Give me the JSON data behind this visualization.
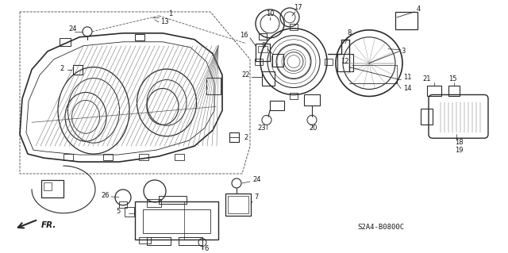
{
  "diagram_code": "S2A4-B0800C",
  "bg_color": "#ffffff",
  "line_color": "#2a2a2a",
  "text_color": "#1a1a1a",
  "fig_width": 6.4,
  "fig_height": 3.19,
  "dpi": 100
}
